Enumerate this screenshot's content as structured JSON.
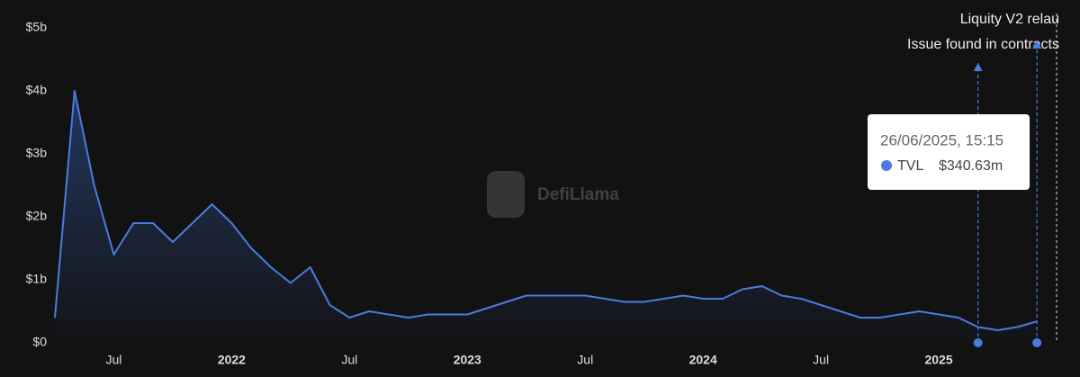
{
  "chart_data": {
    "type": "line",
    "watermark": "DefiLlama",
    "x": [
      "2021-04",
      "2021-05",
      "2021-06",
      "2021-07",
      "2021-08",
      "2021-09",
      "2021-10",
      "2021-11",
      "2021-12",
      "2022-01",
      "2022-02",
      "2022-03",
      "2022-04",
      "2022-05",
      "2022-06",
      "2022-07",
      "2022-08",
      "2022-09",
      "2022-10",
      "2022-11",
      "2022-12",
      "2023-01",
      "2023-02",
      "2023-03",
      "2023-04",
      "2023-05",
      "2023-06",
      "2023-07",
      "2023-08",
      "2023-09",
      "2023-10",
      "2023-11",
      "2023-12",
      "2024-01",
      "2024-02",
      "2024-03",
      "2024-04",
      "2024-05",
      "2024-06",
      "2024-07",
      "2024-08",
      "2024-09",
      "2024-10",
      "2024-11",
      "2024-12",
      "2025-01",
      "2025-02",
      "2025-03",
      "2025-04",
      "2025-05",
      "2025-06"
    ],
    "series": [
      {
        "name": "TVL",
        "color": "#4a7be0",
        "values": [
          0.4,
          4.0,
          2.5,
          1.4,
          1.9,
          1.9,
          1.6,
          1.9,
          2.2,
          1.9,
          1.5,
          1.2,
          0.95,
          1.2,
          0.6,
          0.4,
          0.5,
          0.45,
          0.4,
          0.45,
          0.45,
          0.45,
          0.55,
          0.65,
          0.75,
          0.75,
          0.75,
          0.75,
          0.7,
          0.65,
          0.65,
          0.7,
          0.75,
          0.7,
          0.7,
          0.85,
          0.9,
          0.75,
          0.7,
          0.6,
          0.5,
          0.4,
          0.4,
          0.45,
          0.5,
          0.45,
          0.4,
          0.25,
          0.2,
          0.25,
          0.34
        ]
      }
    ],
    "xlim": [
      "2021-04",
      "2025-07"
    ],
    "xticks": [
      {
        "value": "2021-07",
        "label": "Jul"
      },
      {
        "value": "2022-01",
        "label": "2022"
      },
      {
        "value": "2022-07",
        "label": "Jul"
      },
      {
        "value": "2023-01",
        "label": "2023"
      },
      {
        "value": "2023-07",
        "label": "Jul"
      },
      {
        "value": "2024-01",
        "label": "2024"
      },
      {
        "value": "2024-07",
        "label": "Jul"
      },
      {
        "value": "2025-01",
        "label": "2025"
      }
    ],
    "ylim": [
      0,
      5
    ],
    "yticks": [
      {
        "value": 0,
        "label": "$0"
      },
      {
        "value": 1,
        "label": "$1b"
      },
      {
        "value": 2,
        "label": "$2b"
      },
      {
        "value": 3,
        "label": "$3b"
      },
      {
        "value": 4,
        "label": "$4b"
      },
      {
        "value": 5,
        "label": "$5b"
      }
    ],
    "events": [
      {
        "x": "2025-03",
        "label": "Issue found in contracts"
      },
      {
        "x": "2025-06",
        "label": "Liquity V2 relau"
      }
    ],
    "tooltip": {
      "date": "26/06/2025, 15:15",
      "value_label": "$340.63m"
    }
  }
}
